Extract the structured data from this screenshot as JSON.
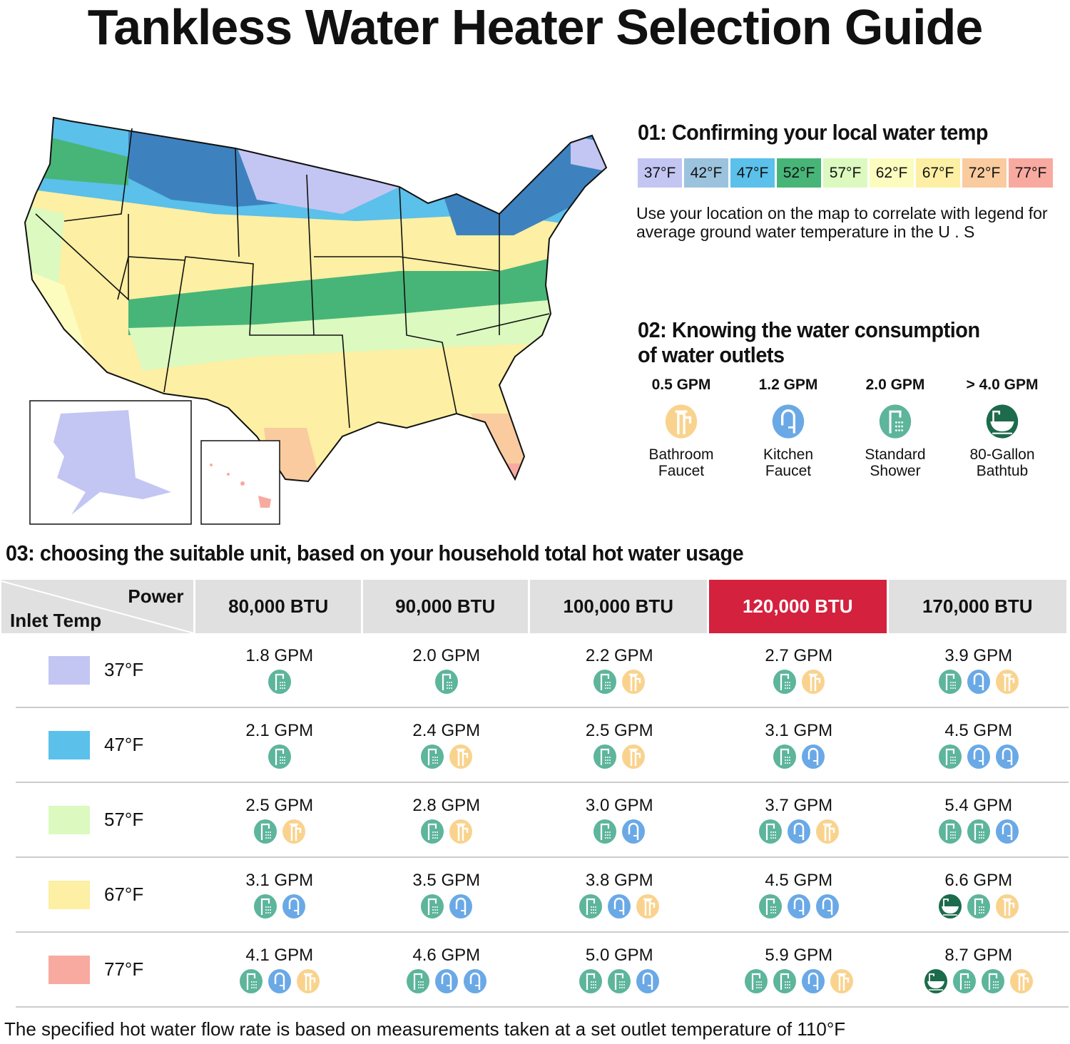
{
  "title": "Tankless Water Heater Selection Guide",
  "section1": {
    "heading": "01:  Confirming your local water temp",
    "legend": [
      {
        "label": "37°F",
        "color": "#c3c6f2"
      },
      {
        "label": "42°F",
        "color": "#9cc3de"
      },
      {
        "label": "47°F",
        "color": "#5bc0ea"
      },
      {
        "label": "52°F",
        "color": "#47b578"
      },
      {
        "label": "57°F",
        "color": "#dcf9c0"
      },
      {
        "label": "62°F",
        "color": "#fdfcbf"
      },
      {
        "label": "67°F",
        "color": "#fdefa3"
      },
      {
        "label": "72°F",
        "color": "#f9cb9e"
      },
      {
        "label": "77°F",
        "color": "#f8aaa1"
      }
    ],
    "description": "Use your location on the map to correlate with legend for average ground water temperature in the U . S"
  },
  "section2": {
    "heading_line1": "02:  Knowing the water consumption",
    "heading_line2": "of water outlets",
    "outlets": [
      {
        "gpm": "0.5 GPM",
        "label1": "Bathroom",
        "label2": "Faucet",
        "icon": "bathroom-faucet"
      },
      {
        "gpm": "1.2 GPM",
        "label1": "Kitchen",
        "label2": "Faucet",
        "icon": "kitchen-faucet"
      },
      {
        "gpm": "2.0 GPM",
        "label1": "Standard",
        "label2": "Shower",
        "icon": "shower"
      },
      {
        "gpm": "> 4.0 GPM",
        "label1": "80-Gallon",
        "label2": "Bathtub",
        "icon": "bathtub"
      }
    ]
  },
  "icon_colors": {
    "bathroom-faucet": "#f9d38e",
    "kitchen-faucet": "#6aa9e6",
    "shower": "#5db59b",
    "bathtub": "#1c6b4c"
  },
  "section3": {
    "heading": "03:  choosing the suitable unit, based on your household total hot water usage",
    "corner_power": "Power",
    "corner_inlet": "Inlet Temp",
    "columns": [
      "80,000 BTU",
      "90,000 BTU",
      "100,000 BTU",
      "120,000 BTU",
      "170,000 BTU"
    ],
    "highlight_column": "120,000 BTU",
    "highlight_color": "#d4213d",
    "rows": [
      {
        "temp": "37°F",
        "color": "#c3c6f2",
        "cells": [
          {
            "gpm": "1.8 GPM",
            "icons": [
              "shower"
            ]
          },
          {
            "gpm": "2.0 GPM",
            "icons": [
              "shower"
            ]
          },
          {
            "gpm": "2.2 GPM",
            "icons": [
              "shower",
              "bathroom-faucet"
            ]
          },
          {
            "gpm": "2.7 GPM",
            "icons": [
              "shower",
              "bathroom-faucet"
            ]
          },
          {
            "gpm": "3.9 GPM",
            "icons": [
              "shower",
              "kitchen-faucet",
              "bathroom-faucet"
            ]
          }
        ]
      },
      {
        "temp": "47°F",
        "color": "#5bc0ea",
        "cells": [
          {
            "gpm": "2.1 GPM",
            "icons": [
              "shower"
            ]
          },
          {
            "gpm": "2.4 GPM",
            "icons": [
              "shower",
              "bathroom-faucet"
            ]
          },
          {
            "gpm": "2.5 GPM",
            "icons": [
              "shower",
              "bathroom-faucet"
            ]
          },
          {
            "gpm": "3.1 GPM",
            "icons": [
              "shower",
              "kitchen-faucet"
            ]
          },
          {
            "gpm": "4.5 GPM",
            "icons": [
              "shower",
              "kitchen-faucet",
              "kitchen-faucet"
            ]
          }
        ]
      },
      {
        "temp": "57°F",
        "color": "#dcf9c0",
        "cells": [
          {
            "gpm": "2.5 GPM",
            "icons": [
              "shower",
              "bathroom-faucet"
            ]
          },
          {
            "gpm": "2.8 GPM",
            "icons": [
              "shower",
              "bathroom-faucet"
            ]
          },
          {
            "gpm": "3.0 GPM",
            "icons": [
              "shower",
              "kitchen-faucet"
            ]
          },
          {
            "gpm": "3.7 GPM",
            "icons": [
              "shower",
              "kitchen-faucet",
              "bathroom-faucet"
            ]
          },
          {
            "gpm": "5.4 GPM",
            "icons": [
              "shower",
              "shower",
              "kitchen-faucet"
            ]
          }
        ]
      },
      {
        "temp": "67°F",
        "color": "#fdefa3",
        "cells": [
          {
            "gpm": "3.1 GPM",
            "icons": [
              "shower",
              "kitchen-faucet"
            ]
          },
          {
            "gpm": "3.5 GPM",
            "icons": [
              "shower",
              "kitchen-faucet"
            ]
          },
          {
            "gpm": "3.8 GPM",
            "icons": [
              "shower",
              "kitchen-faucet",
              "bathroom-faucet"
            ]
          },
          {
            "gpm": "4.5 GPM",
            "icons": [
              "shower",
              "kitchen-faucet",
              "kitchen-faucet"
            ]
          },
          {
            "gpm": "6.6 GPM",
            "icons": [
              "bathtub",
              "shower",
              "bathroom-faucet"
            ]
          }
        ]
      },
      {
        "temp": "77°F",
        "color": "#f8aaa1",
        "cells": [
          {
            "gpm": "4.1 GPM",
            "icons": [
              "shower",
              "kitchen-faucet",
              "bathroom-faucet"
            ]
          },
          {
            "gpm": "4.6 GPM",
            "icons": [
              "shower",
              "kitchen-faucet",
              "kitchen-faucet"
            ]
          },
          {
            "gpm": "5.0 GPM",
            "icons": [
              "shower",
              "shower",
              "kitchen-faucet"
            ]
          },
          {
            "gpm": "5.9 GPM",
            "icons": [
              "shower",
              "shower",
              "kitchen-faucet",
              "bathroom-faucet"
            ]
          },
          {
            "gpm": "8.7 GPM",
            "icons": [
              "bathtub",
              "shower",
              "shower",
              "bathroom-faucet"
            ]
          }
        ]
      }
    ]
  },
  "footer": "The specified hot water flow rate is based on measurements taken at a set outlet temperature of 110°F"
}
